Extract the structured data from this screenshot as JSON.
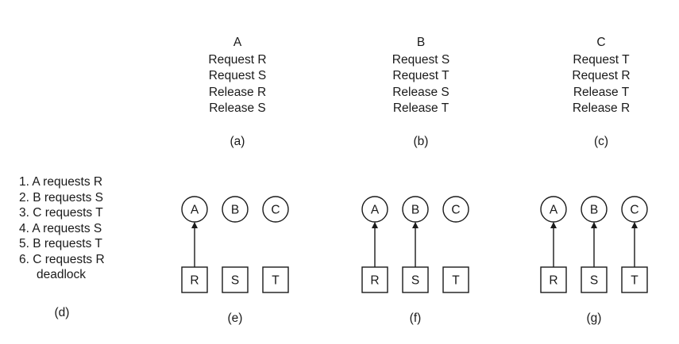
{
  "processes": [
    {
      "name": "A",
      "lines": [
        "Request R",
        "Request S",
        "Release R",
        "Release S"
      ],
      "caption": "(a)"
    },
    {
      "name": "B",
      "lines": [
        "Request S",
        "Request T",
        "Release S",
        "Release T"
      ],
      "caption": "(b)"
    },
    {
      "name": "C",
      "lines": [
        "Request T",
        "Request R",
        "Release T",
        "Release R"
      ],
      "caption": "(c)"
    }
  ],
  "sequence": {
    "steps": [
      "1. A requests R",
      "2. B requests S",
      "3. C requests T",
      "4. A requests S",
      "5. B requests T",
      "6. C requests R"
    ],
    "final": "deadlock",
    "caption": "(d)"
  },
  "graphs": [
    {
      "caption": "(e)",
      "processes": [
        "A",
        "B",
        "C"
      ],
      "resources": [
        "R",
        "S",
        "T"
      ],
      "assigned": [
        true,
        false,
        false
      ]
    },
    {
      "caption": "(f)",
      "processes": [
        "A",
        "B",
        "C"
      ],
      "resources": [
        "R",
        "S",
        "T"
      ],
      "assigned": [
        true,
        true,
        false
      ]
    },
    {
      "caption": "(g)",
      "processes": [
        "A",
        "B",
        "C"
      ],
      "resources": [
        "R",
        "S",
        "T"
      ],
      "assigned": [
        true,
        true,
        true
      ]
    }
  ]
}
